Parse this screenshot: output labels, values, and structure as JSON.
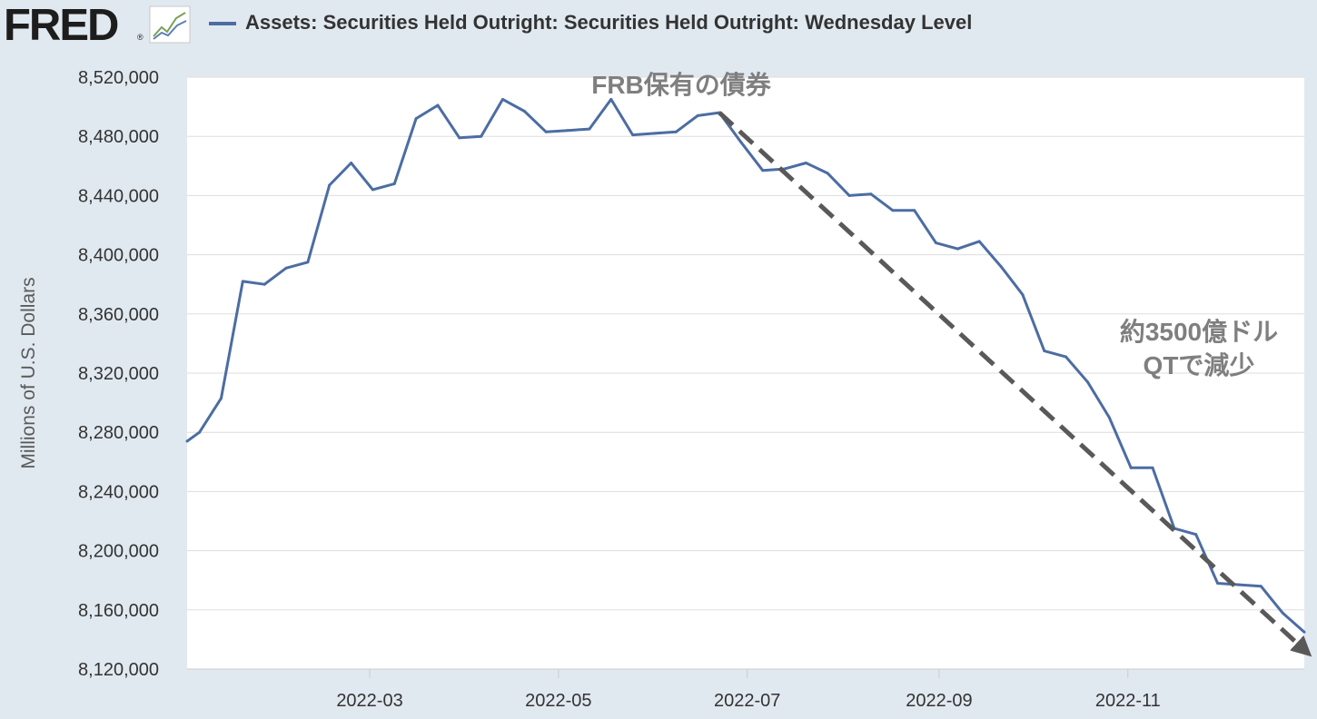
{
  "logo": {
    "text": "FRED",
    "registered": "®"
  },
  "legend": {
    "label": "Assets: Securities Held Outright: Securities Held Outright: Wednesday Level",
    "color": "#4c6da3"
  },
  "chart_data": {
    "type": "line",
    "title": "",
    "ylabel": "Millions of U.S. Dollars",
    "xlabel": "",
    "ylim": [
      8120000,
      8520000
    ],
    "y_ticks": [
      8120000,
      8160000,
      8200000,
      8240000,
      8280000,
      8320000,
      8360000,
      8400000,
      8440000,
      8480000,
      8520000
    ],
    "y_tick_labels": [
      "8,120,000",
      "8,160,000",
      "8,200,000",
      "8,240,000",
      "8,280,000",
      "8,320,000",
      "8,360,000",
      "8,400,000",
      "8,440,000",
      "8,480,000",
      "8,520,000"
    ],
    "x_ticks": [
      "2022-03-01",
      "2022-05-01",
      "2022-07-01",
      "2022-09-01",
      "2022-11-01"
    ],
    "x_tick_labels": [
      "2022-03",
      "2022-05",
      "2022-07",
      "2022-09",
      "2022-11"
    ],
    "xlim": [
      "2022-01-01",
      "2022-12-28"
    ],
    "grid": "horizontal",
    "series": [
      {
        "name": "Assets: Securities Held Outright: Securities Held Outright: Wednesday Level",
        "color": "#4c6da3",
        "x": [
          "2022-01-01",
          "2022-01-05",
          "2022-01-12",
          "2022-01-19",
          "2022-01-26",
          "2022-02-02",
          "2022-02-09",
          "2022-02-16",
          "2022-02-23",
          "2022-03-02",
          "2022-03-09",
          "2022-03-16",
          "2022-03-23",
          "2022-03-30",
          "2022-04-06",
          "2022-04-13",
          "2022-04-20",
          "2022-04-27",
          "2022-05-04",
          "2022-05-11",
          "2022-05-18",
          "2022-05-25",
          "2022-06-01",
          "2022-06-08",
          "2022-06-15",
          "2022-06-22",
          "2022-06-29",
          "2022-07-06",
          "2022-07-13",
          "2022-07-20",
          "2022-07-27",
          "2022-08-03",
          "2022-08-10",
          "2022-08-17",
          "2022-08-24",
          "2022-08-31",
          "2022-09-07",
          "2022-09-14",
          "2022-09-21",
          "2022-09-28",
          "2022-10-05",
          "2022-10-12",
          "2022-10-19",
          "2022-10-26",
          "2022-11-02",
          "2022-11-09",
          "2022-11-16",
          "2022-11-23",
          "2022-11-30",
          "2022-12-07",
          "2022-12-14",
          "2022-12-21",
          "2022-12-28"
        ],
        "values": [
          8274000,
          8280000,
          8303000,
          8382000,
          8380000,
          8391000,
          8395000,
          8447000,
          8462000,
          8444000,
          8448000,
          8492000,
          8501000,
          8479000,
          8480000,
          8505000,
          8497000,
          8483000,
          8484000,
          8485000,
          8505000,
          8481000,
          8482000,
          8483000,
          8494000,
          8496000,
          8476000,
          8457000,
          8458000,
          8462000,
          8455000,
          8440000,
          8441000,
          8430000,
          8430000,
          8408000,
          8404000,
          8409000,
          8392000,
          8373000,
          8335000,
          8331000,
          8314000,
          8290000,
          8256000,
          8256000,
          8215000,
          8211000,
          8178000,
          8177000,
          8176000,
          8158000,
          8145000
        ]
      }
    ],
    "annotations": [
      {
        "text": "FRB保有の債券",
        "color": "#7f7f7f"
      },
      {
        "text": "約3500億ドル",
        "color": "#7f7f7f"
      },
      {
        "text": "QTで減少",
        "color": "#7f7f7f"
      }
    ],
    "arrow": {
      "from": [
        "2022-06-22",
        8496000
      ],
      "to": [
        "2022-12-28",
        8133000
      ],
      "style": "dashed",
      "color": "#595959"
    }
  }
}
